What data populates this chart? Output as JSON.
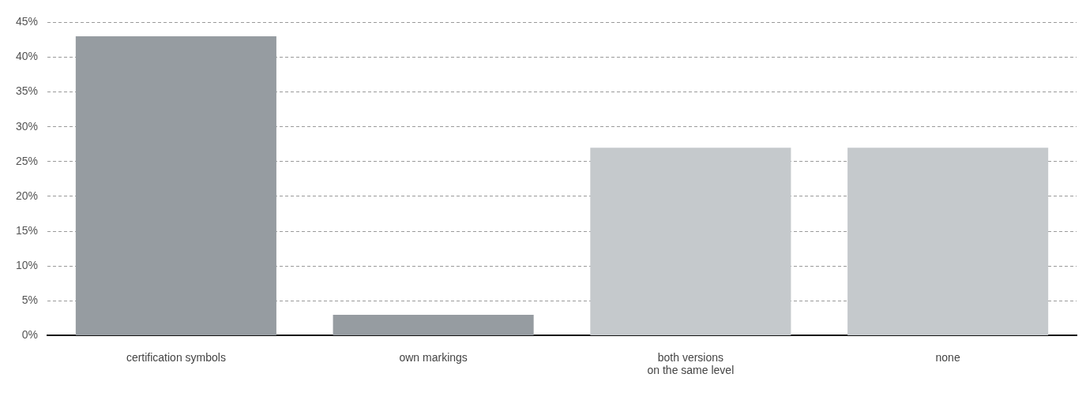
{
  "chart_data": {
    "type": "bar",
    "categories": [
      "certification symbols",
      "own markings",
      "both versions\non the same level",
      "none"
    ],
    "values": [
      43,
      3,
      27,
      27
    ],
    "colors": [
      "#969ca1",
      "#969ca1",
      "#c5c9cc",
      "#c5c9cc"
    ],
    "ylim": [
      0,
      45
    ],
    "yticks": [
      {
        "value": 0,
        "label": "0%"
      },
      {
        "value": 5,
        "label": "5%"
      },
      {
        "value": 10,
        "label": "10%"
      },
      {
        "value": 15,
        "label": "15%"
      },
      {
        "value": 20,
        "label": "20%"
      },
      {
        "value": 25,
        "label": "25%"
      },
      {
        "value": 30,
        "label": "30%"
      },
      {
        "value": 35,
        "label": "35%"
      },
      {
        "value": 40,
        "label": "40%"
      },
      {
        "value": 45,
        "label": "45%"
      }
    ],
    "grid": "y",
    "legend": false
  }
}
